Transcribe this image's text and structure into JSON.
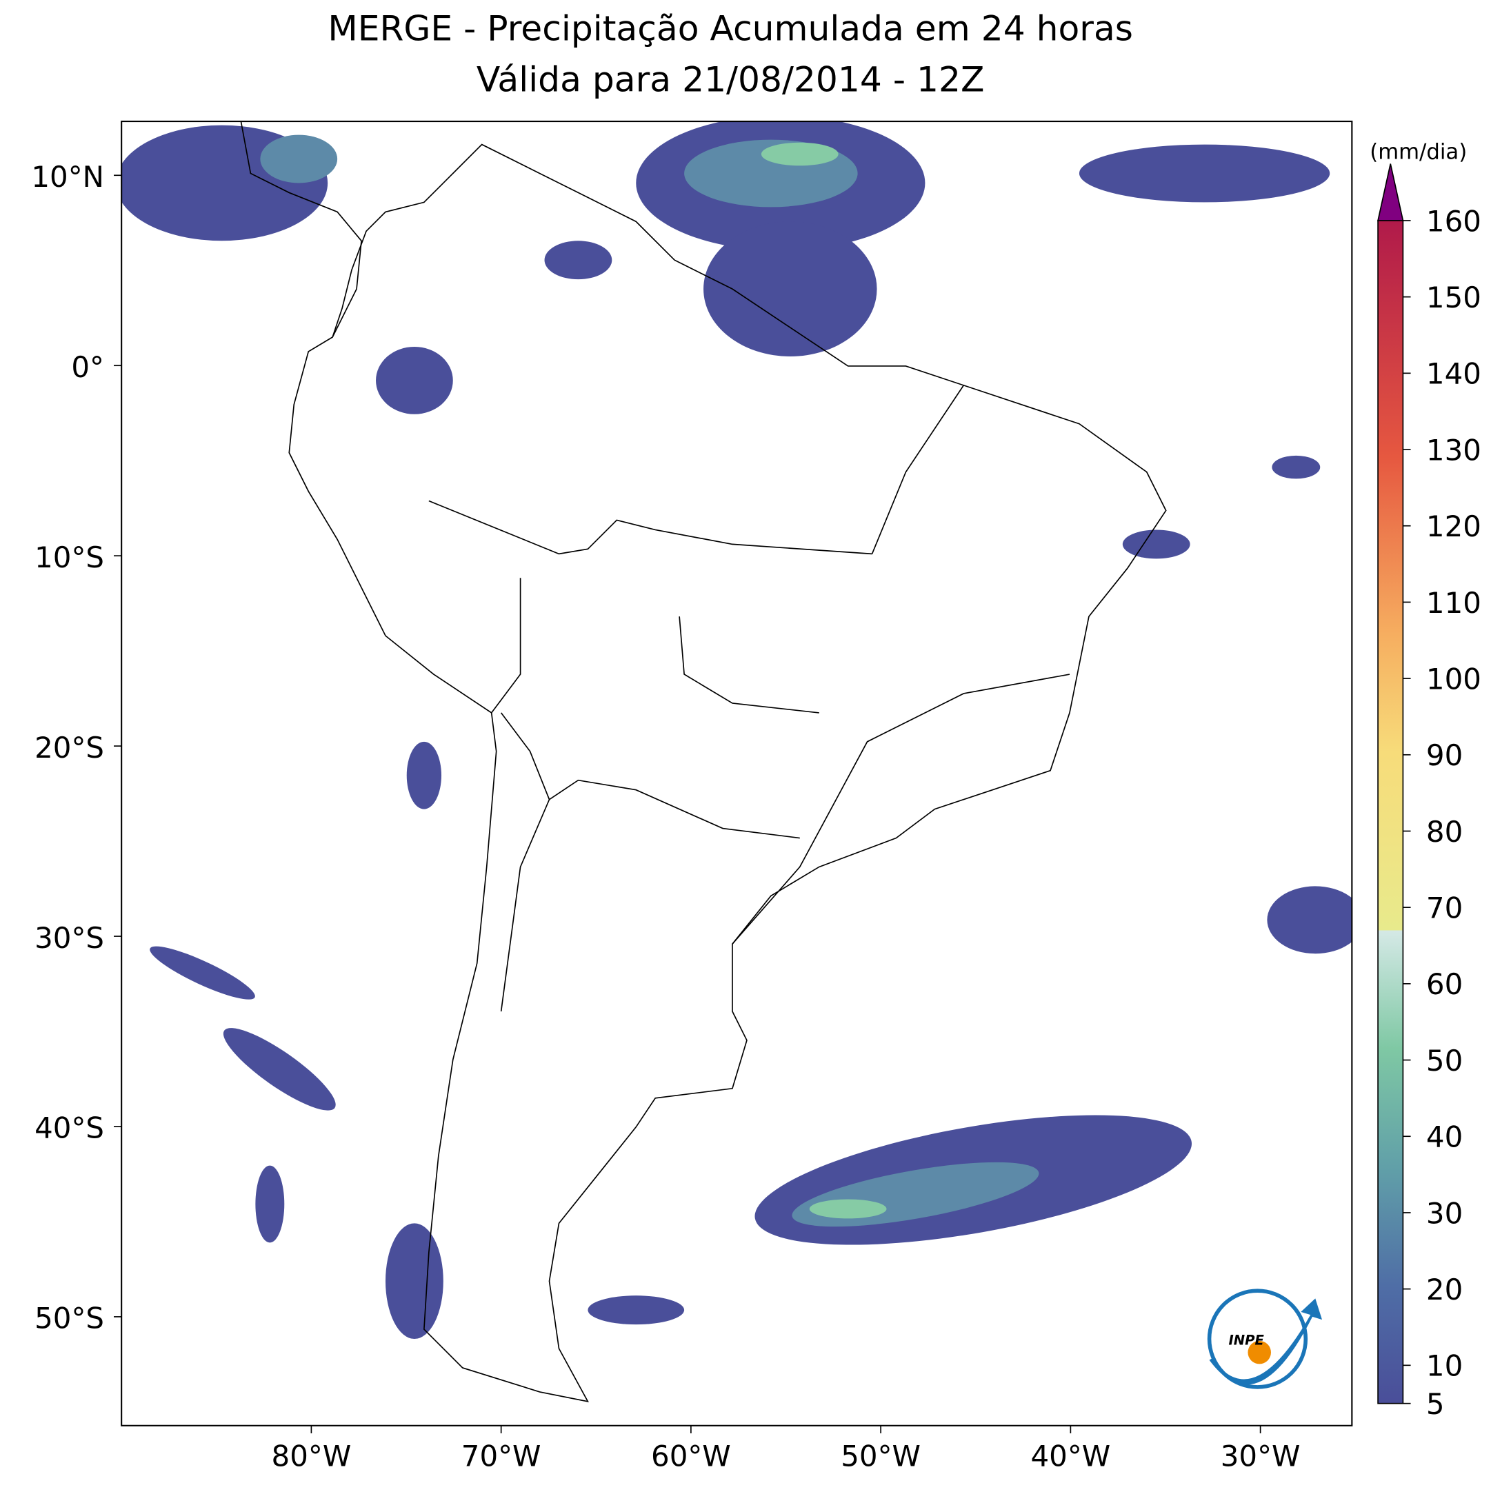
{
  "title": [
    "MERGE - Precipitação Acumulada em 24 horas",
    "Válida para 21/08/2014 - 12Z"
  ],
  "colorbar": {
    "label": "(mm/dia)",
    "ticks": [
      5,
      10,
      20,
      30,
      40,
      50,
      60,
      70,
      80,
      90,
      100,
      110,
      120,
      130,
      140,
      150,
      160
    ]
  },
  "lat_labels": [
    "10°N",
    "0°",
    "10°S",
    "20°S",
    "30°S",
    "40°S",
    "50°S"
  ],
  "lon_labels": [
    "80°W",
    "70°W",
    "60°W",
    "50°W",
    "40°W",
    "30°W"
  ],
  "logo": "INPE"
}
